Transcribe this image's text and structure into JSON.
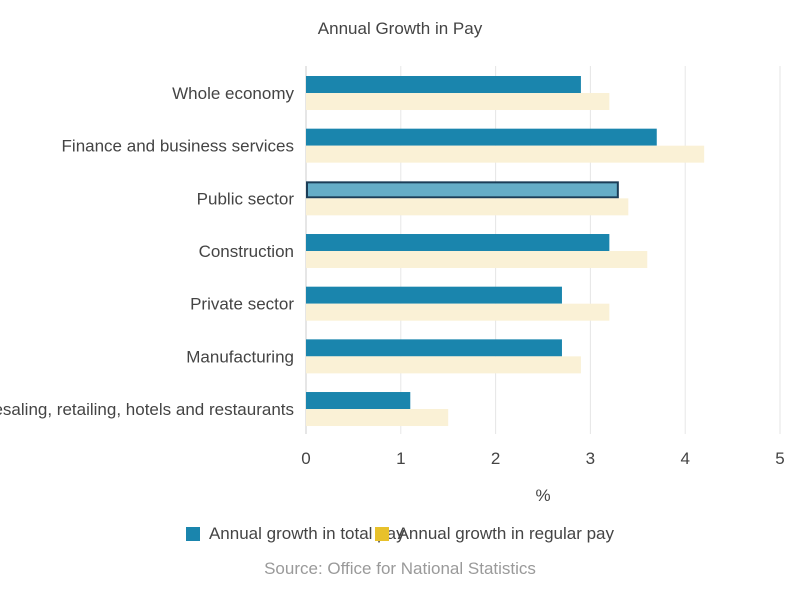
{
  "chart_data": {
    "type": "bar",
    "orientation": "horizontal",
    "title": "Annual Growth in Pay",
    "xlabel": "%",
    "ylabel": "",
    "xlim": [
      0,
      5
    ],
    "ticks": [
      "0",
      "1",
      "2",
      "3",
      "4",
      "5"
    ],
    "grid": true,
    "legend_position": "bottom",
    "categories": [
      "Whole economy",
      "Finance and business services",
      "Public sector",
      "Construction",
      "Private sector",
      "Manufacturing",
      "Wholesaling, retailing, hotels and restaurants"
    ],
    "series": [
      {
        "name": "Annual growth in total pay",
        "values": [
          2.9,
          3.7,
          3.3,
          3.2,
          2.7,
          2.7,
          1.1
        ],
        "color": "#1a85ad"
      },
      {
        "name": "Annual growth in regular pay",
        "values": [
          3.2,
          4.2,
          3.4,
          3.6,
          3.2,
          2.9,
          1.5
        ],
        "color": "#faf1d6"
      }
    ],
    "highlighted": {
      "series": 0,
      "category": 2,
      "color": "#65adc7",
      "stroke": "#1b3d57"
    },
    "source": "Source: Office for National Statistics"
  },
  "legend_swatch_colors": [
    "#1a85ad",
    "#e8c12b"
  ]
}
